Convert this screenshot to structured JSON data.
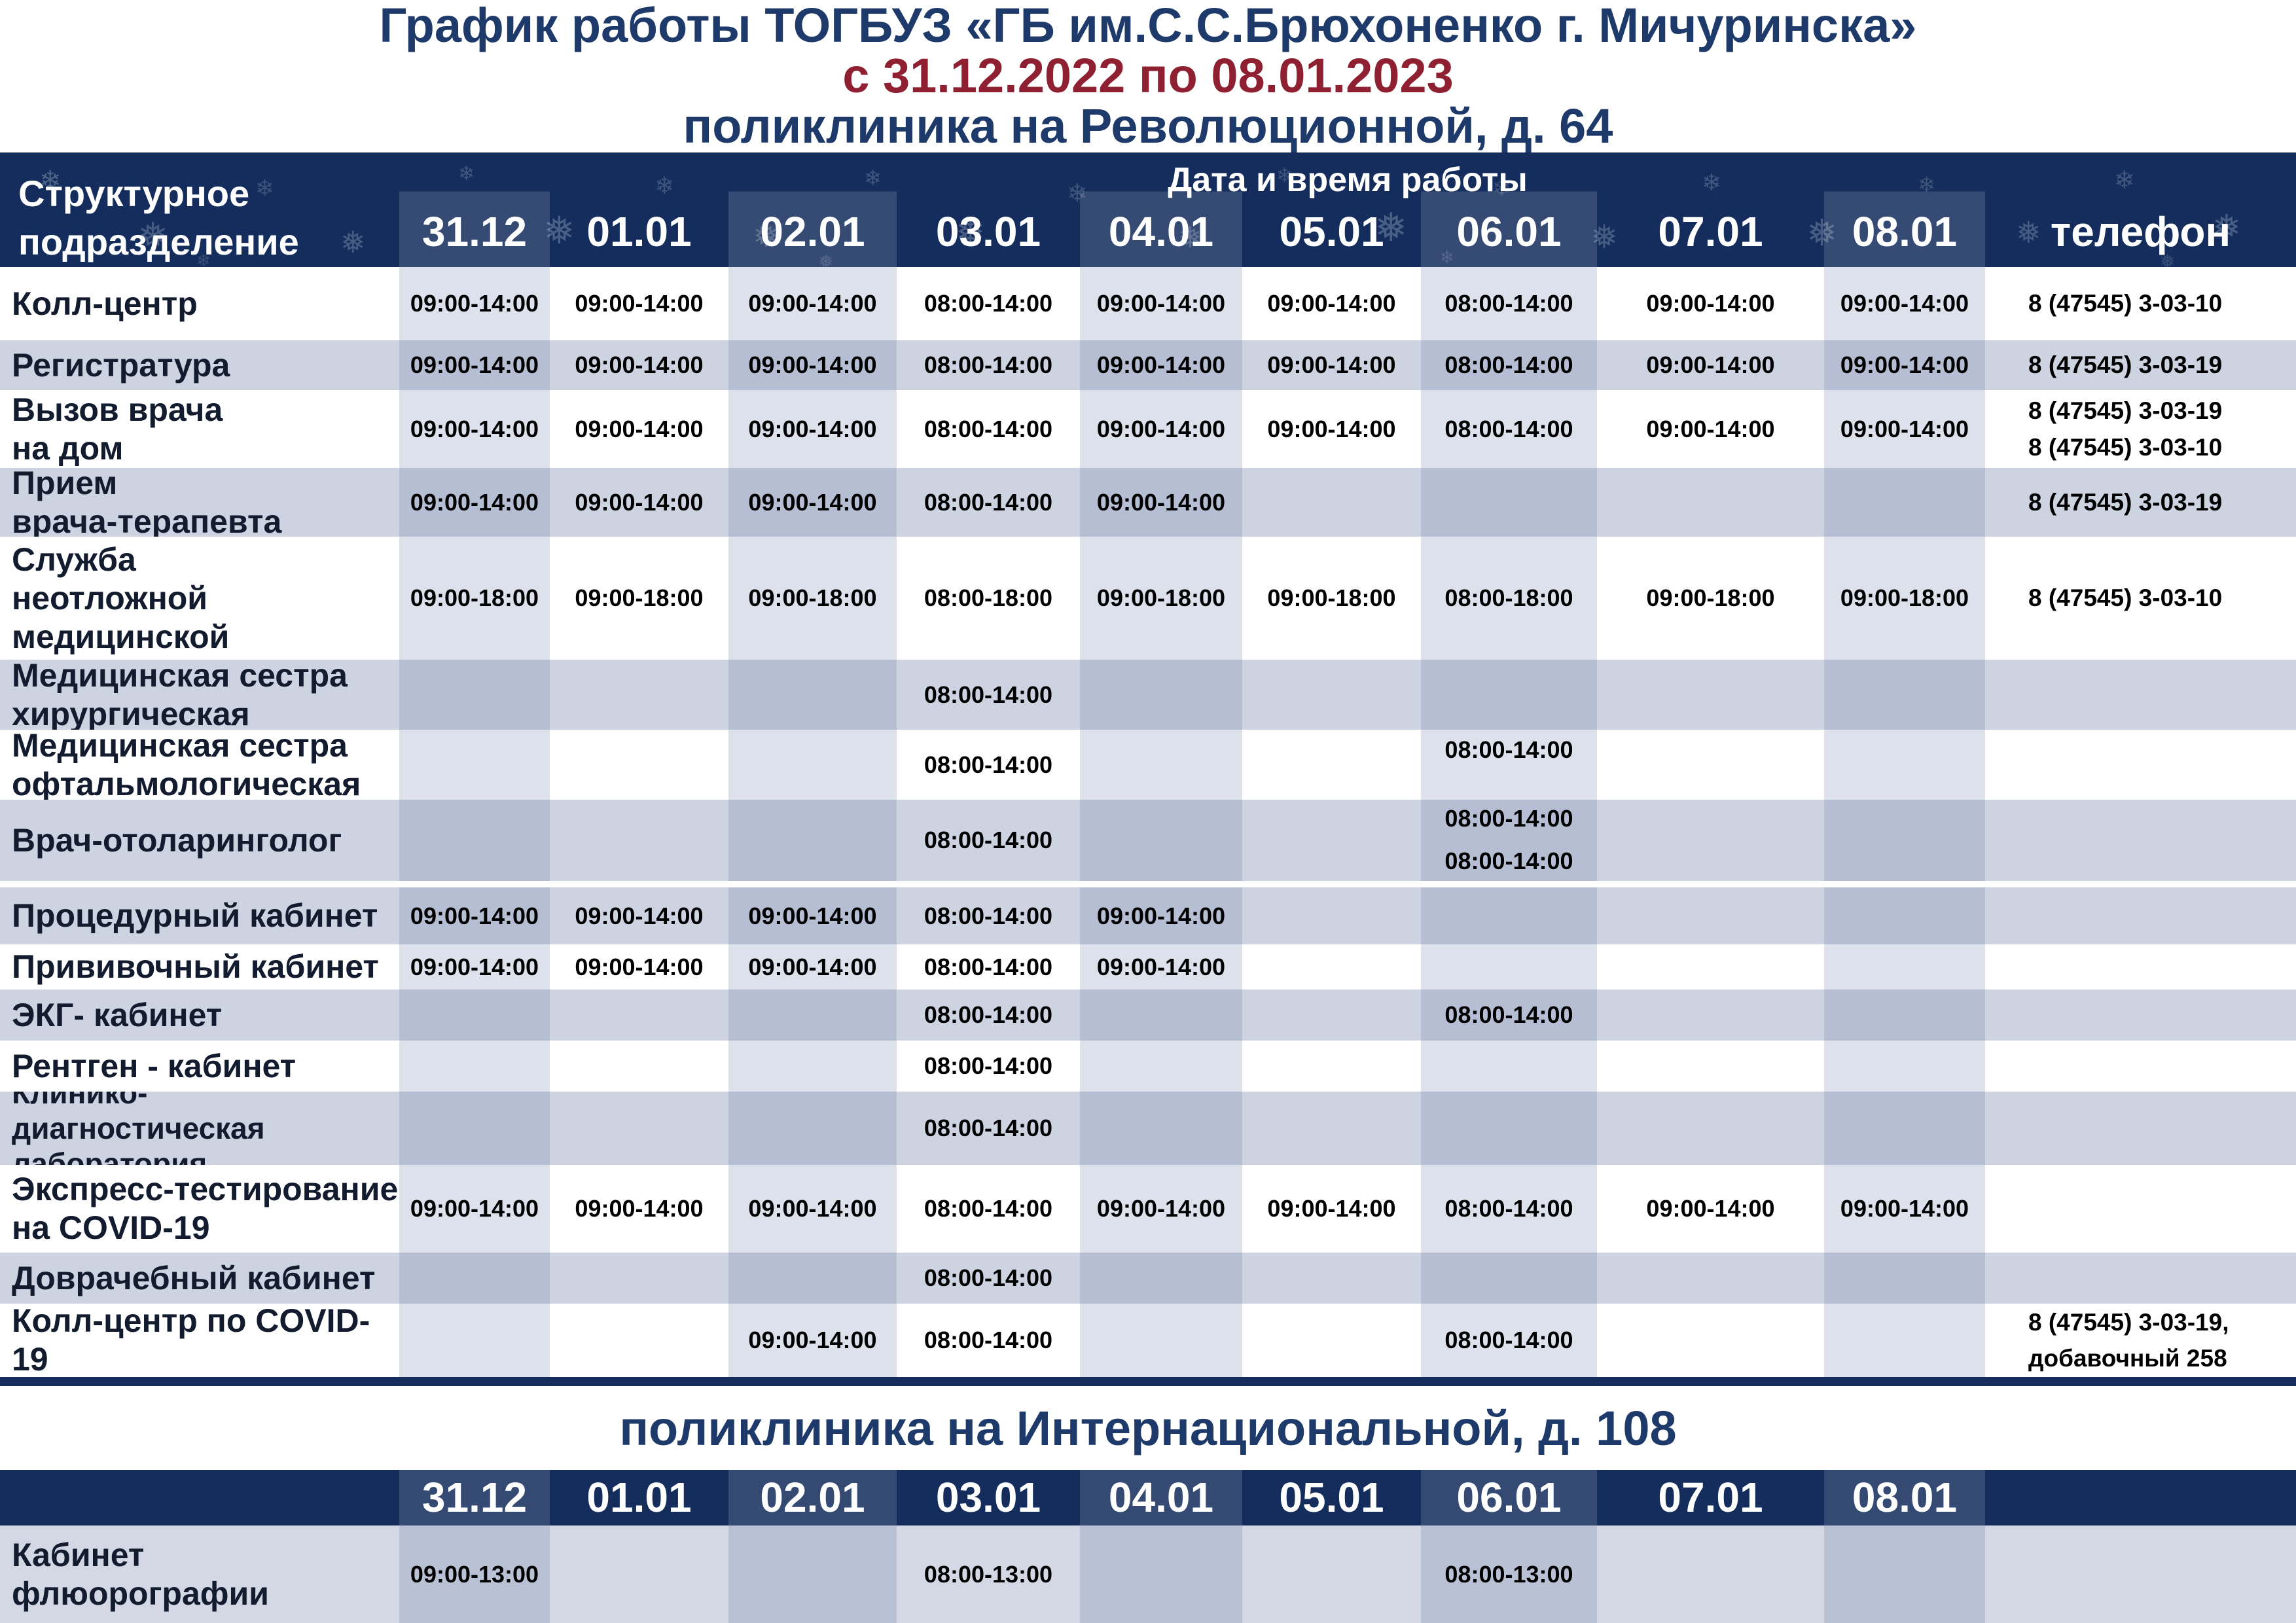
{
  "poster": {
    "title": "График работы ТОГБУЗ «ГБ им.С.С.Брюхоненко г. Мичуринска»",
    "period": "с 31.12.2022 по 08.01.2023",
    "section1_title": "поликлиника на Революционной, д. 64",
    "section2_title": "поликлиника на Интернациональной, д. 108"
  },
  "icons": {
    "snowflake": "❄",
    "snowflake_alt": "❅"
  },
  "colors": {
    "header_navy": "#142d5c",
    "title_navy": "#1d3a6a",
    "period_red": "#8f2031",
    "striped_row": "#cdd3e1",
    "col_tint_on_white": "#dde1ec",
    "col_tint_on_striped": "#b6bed3",
    "bottom_row_base": "#d3d8e4",
    "bottom_row_tint": "#b9c1d5"
  },
  "table1": {
    "corner_header": "Структурное\nподразделение",
    "dates_header": "Дата и время работы",
    "phone_header": "телефон",
    "dates": [
      "31.12",
      "01.01",
      "02.01",
      "03.01",
      "04.01",
      "05.01",
      "06.01",
      "07.01",
      "08.01"
    ],
    "rows": [
      {
        "label": "Колл-центр",
        "times": [
          "09:00-14:00",
          "09:00-14:00",
          "09:00-14:00",
          "08:00-14:00",
          "09:00-14:00",
          "09:00-14:00",
          "08:00-14:00",
          "09:00-14:00",
          "09:00-14:00"
        ],
        "phone": [
          "8  (47545) 3-03-10"
        ]
      },
      {
        "label": "Регистратура",
        "times": [
          "09:00-14:00",
          "09:00-14:00",
          "09:00-14:00",
          "08:00-14:00",
          "09:00-14:00",
          "09:00-14:00",
          "08:00-14:00",
          "09:00-14:00",
          "09:00-14:00"
        ],
        "phone": [
          "8  (47545) 3-03-19"
        ]
      },
      {
        "label": "Вызов врача\nна дом",
        "times": [
          "09:00-14:00",
          "09:00-14:00",
          "09:00-14:00",
          "08:00-14:00",
          "09:00-14:00",
          "09:00-14:00",
          "08:00-14:00",
          "09:00-14:00",
          "09:00-14:00"
        ],
        "phone": [
          "8  (47545) 3-03-19",
          "8  (47545) 3-03-10"
        ]
      },
      {
        "label": "Прием\nврача-терапевта",
        "times": [
          "09:00-14:00",
          "09:00-14:00",
          "09:00-14:00",
          "08:00-14:00",
          "09:00-14:00",
          "",
          "",
          "",
          ""
        ],
        "phone": [
          "8  (47545) 3-03-19"
        ]
      },
      {
        "label": "Служба\nнеотложной\nмедицинской",
        "times": [
          "09:00-18:00",
          "09:00-18:00",
          "09:00-18:00",
          "08:00-18:00",
          "09:00-18:00",
          "09:00-18:00",
          "08:00-18:00",
          "09:00-18:00",
          "09:00-18:00"
        ],
        "phone": [
          "8  (47545) 3-03-10"
        ]
      },
      {
        "label": "Медицинская сестра\nхирургическая",
        "times": [
          "",
          "",
          "",
          "08:00-14:00",
          "",
          "",
          "",
          "",
          ""
        ],
        "phone": []
      },
      {
        "label": "Медицинская сестра\nофтальмологическая",
        "times": [
          "",
          "",
          "",
          "08:00-14:00",
          "",
          "",
          {
            "v": "08:00-14:00",
            "align": "top"
          },
          "",
          ""
        ],
        "phone": []
      },
      {
        "label": "Врач-отоларинголог",
        "times": [
          "",
          "",
          "",
          "08:00-14:00",
          "",
          "",
          [
            "08:00-14:00",
            "08:00-14:00"
          ],
          "",
          ""
        ],
        "phone": []
      },
      {
        "label": "Процедурный кабинет",
        "times": [
          "09:00-14:00",
          "09:00-14:00",
          "09:00-14:00",
          "08:00-14:00",
          "09:00-14:00",
          "",
          "",
          "",
          ""
        ],
        "phone": []
      },
      {
        "label": "Прививочный кабинет",
        "times": [
          "09:00-14:00",
          "09:00-14:00",
          "09:00-14:00",
          "08:00-14:00",
          "09:00-14:00",
          "",
          "",
          "",
          ""
        ],
        "phone": []
      },
      {
        "label": "ЭКГ- кабинет",
        "times": [
          "",
          "",
          "",
          "08:00-14:00",
          "",
          "",
          "08:00-14:00",
          "",
          ""
        ],
        "phone": []
      },
      {
        "label": "Рентген - кабинет",
        "times": [
          "",
          "",
          "",
          "08:00-14:00",
          "",
          "",
          "",
          "",
          ""
        ],
        "phone": []
      },
      {
        "label": "Клинико-диагностическая\nлаборатория",
        "times": [
          "",
          "",
          "",
          "08:00-14:00",
          "",
          "",
          "",
          "",
          ""
        ],
        "phone": []
      },
      {
        "label": "Экспресс-тестирование\nна COVID-19",
        "times": [
          "09:00-14:00",
          "09:00-14:00",
          "09:00-14:00",
          "08:00-14:00",
          "09:00-14:00",
          "09:00-14:00",
          "08:00-14:00",
          "09:00-14:00",
          "09:00-14:00"
        ],
        "phone": []
      },
      {
        "label": "Доврачебный кабинет",
        "times": [
          "",
          "",
          "",
          "08:00-14:00",
          "",
          "",
          "",
          "",
          ""
        ],
        "phone": []
      },
      {
        "label": "Колл-центр по COVID-19",
        "times": [
          "",
          "",
          "09:00-14:00",
          "08:00-14:00",
          "",
          "",
          "08:00-14:00",
          "",
          ""
        ],
        "phone": [
          "8  (47545) 3-03-19,",
          "добавочный 258"
        ]
      }
    ]
  },
  "table2": {
    "dates": [
      "31.12",
      "01.01",
      "02.01",
      "03.01",
      "04.01",
      "05.01",
      "06.01",
      "07.01",
      "08.01"
    ],
    "rows": [
      {
        "label": "Кабинет\nфлюорографии",
        "times": [
          "09:00-13:00",
          "",
          "",
          "08:00-13:00",
          "",
          "",
          "08:00-13:00",
          "",
          ""
        ],
        "phone": []
      }
    ]
  }
}
